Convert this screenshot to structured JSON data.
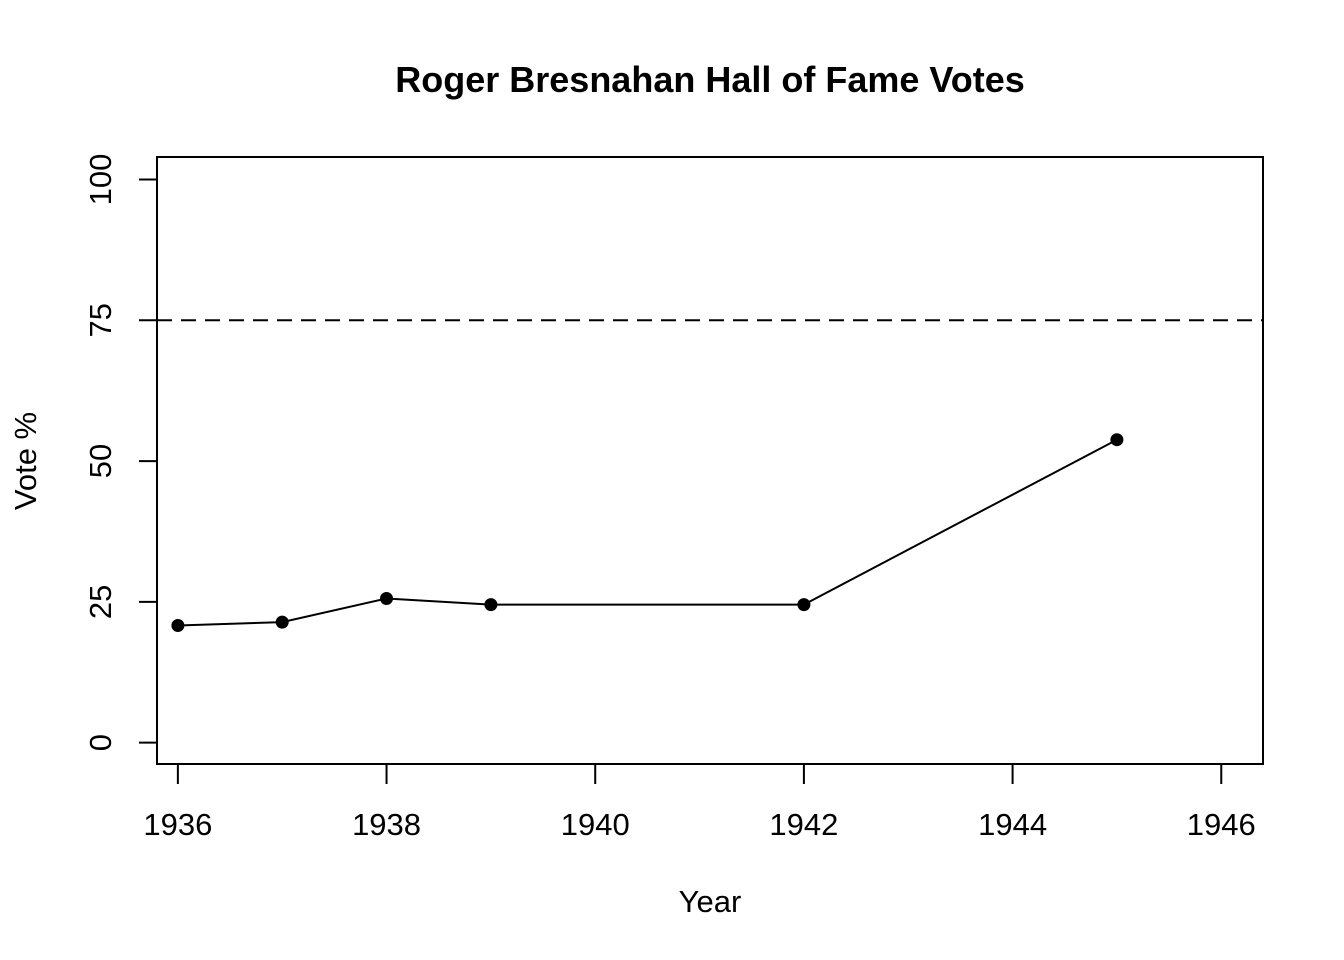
{
  "chart_data": {
    "type": "line",
    "title": "Roger Bresnahan Hall of Fame Votes",
    "xlabel": "Year",
    "ylabel": "Vote %",
    "x": [
      1936,
      1937,
      1938,
      1939,
      1942,
      1945
    ],
    "series": [
      {
        "values": [
          20.8,
          21.4,
          25.6,
          24.5,
          24.5,
          53.8
        ]
      }
    ],
    "xlim": [
      1935.8,
      1946.4
    ],
    "ylim": [
      -3.8,
      104
    ],
    "xticks": [
      "1936",
      "1938",
      "1940",
      "1942",
      "1944",
      "1946"
    ],
    "yticks": [
      "0",
      "25",
      "50",
      "75",
      "100"
    ],
    "reference_line": {
      "y": 75,
      "style": "dashed"
    },
    "grid": false,
    "legend": "none",
    "colors": {
      "line": "#000000",
      "points": "#000000",
      "reference": "#000000"
    }
  }
}
